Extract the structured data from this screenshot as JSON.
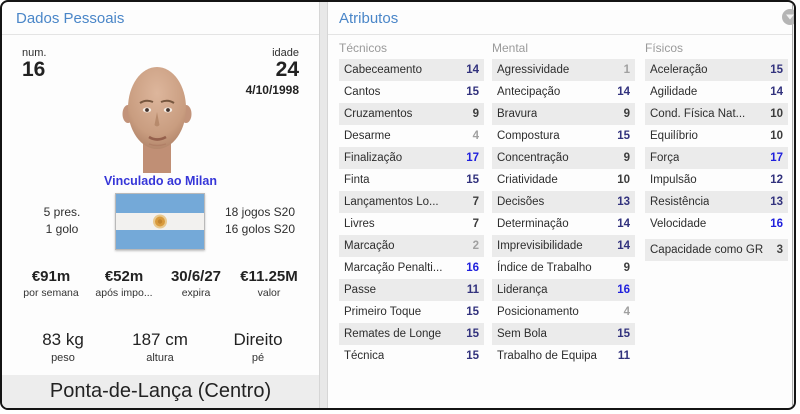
{
  "personal": {
    "title": "Dados Pessoais",
    "number_label": "num.",
    "number_value": "16",
    "age_label": "idade",
    "age_value": "24",
    "birth_date": "4/10/1998",
    "loan_status": "Vinculado ao Milan",
    "club_apps": "5 pres.",
    "club_goals": "1 golo",
    "intl_apps": "18 jogos S20",
    "intl_goals": "16 golos S20",
    "nationality_flag": "Argentina",
    "contract": [
      {
        "value": "€91m",
        "label": "por semana"
      },
      {
        "value": "€52m",
        "label": "após impo..."
      },
      {
        "value": "30/6/27",
        "label": "expira"
      },
      {
        "value": "€11.25M",
        "label": "valor"
      }
    ],
    "physique": [
      {
        "value": "83 kg",
        "label": "peso"
      },
      {
        "value": "187 cm",
        "label": "altura"
      },
      {
        "value": "Direito",
        "label": "pé"
      }
    ],
    "position": "Ponta-de-Lança (Centro)"
  },
  "attributes": {
    "title": "Atributos",
    "columns": [
      {
        "header": "Técnicos",
        "rows": [
          {
            "label": "Cabeceamento",
            "value": 14
          },
          {
            "label": "Cantos",
            "value": 15
          },
          {
            "label": "Cruzamentos",
            "value": 9
          },
          {
            "label": "Desarme",
            "value": 4
          },
          {
            "label": "Finalização",
            "value": 17
          },
          {
            "label": "Finta",
            "value": 15
          },
          {
            "label": "Lançamentos Lo...",
            "value": 7
          },
          {
            "label": "Livres",
            "value": 7
          },
          {
            "label": "Marcação",
            "value": 2
          },
          {
            "label": "Marcação Penalti...",
            "value": 16
          },
          {
            "label": "Passe",
            "value": 11
          },
          {
            "label": "Primeiro Toque",
            "value": 15
          },
          {
            "label": "Remates de Longe",
            "value": 15
          },
          {
            "label": "Técnica",
            "value": 15
          }
        ]
      },
      {
        "header": "Mental",
        "rows": [
          {
            "label": "Agressividade",
            "value": 1
          },
          {
            "label": "Antecipação",
            "value": 14
          },
          {
            "label": "Bravura",
            "value": 9
          },
          {
            "label": "Compostura",
            "value": 15
          },
          {
            "label": "Concentração",
            "value": 9
          },
          {
            "label": "Criatividade",
            "value": 10
          },
          {
            "label": "Decisões",
            "value": 13
          },
          {
            "label": "Determinação",
            "value": 14
          },
          {
            "label": "Imprevisibilidade",
            "value": 14
          },
          {
            "label": "Índice de Trabalho",
            "value": 9
          },
          {
            "label": "Liderança",
            "value": 16
          },
          {
            "label": "Posicionamento",
            "value": 4
          },
          {
            "label": "Sem Bola",
            "value": 15
          },
          {
            "label": "Trabalho de Equipa",
            "value": 11
          }
        ]
      },
      {
        "header": "Físicos",
        "rows": [
          {
            "label": "Aceleração",
            "value": 15
          },
          {
            "label": "Agilidade",
            "value": 14
          },
          {
            "label": "Cond. Física Nat...",
            "value": 10
          },
          {
            "label": "Equilíbrio",
            "value": 10
          },
          {
            "label": "Força",
            "value": 17
          },
          {
            "label": "Impulsão",
            "value": 12
          },
          {
            "label": "Resistência",
            "value": 13
          },
          {
            "label": "Velocidade",
            "value": 16
          }
        ]
      }
    ],
    "goalkeeper": {
      "label": "Capacidade como GR",
      "value": 3
    }
  },
  "icons": {
    "collapse_button": "chevron-down-circle-icon",
    "portrait": "player-face-image",
    "flag": "argentina-flag"
  },
  "colors": {
    "accent_blue": "#4a86c8",
    "link_blue": "#3636d8",
    "attr_excellent": "#2020dd",
    "attr_good": "#32327d",
    "attr_average": "#3c3c3c",
    "attr_poor": "#a0a0a0",
    "row_stripe": "#ebebeb",
    "flag_blue": "#74a9d8",
    "flag_sun": "#d89a3c"
  }
}
